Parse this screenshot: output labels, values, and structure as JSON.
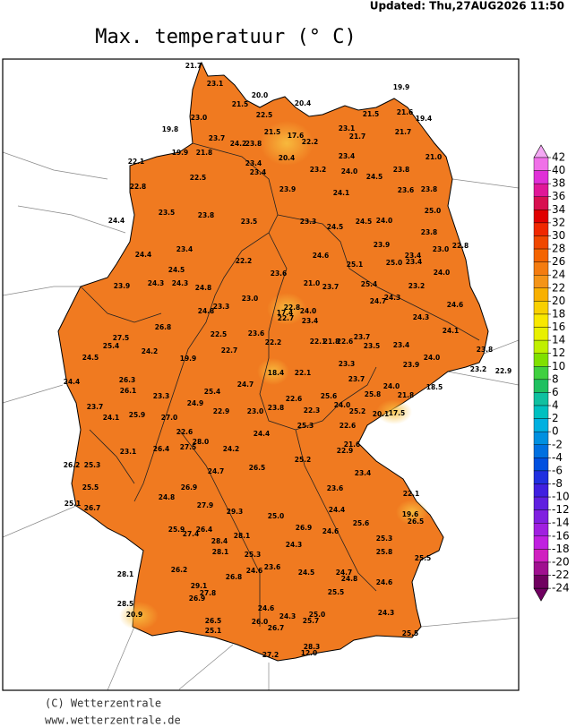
{
  "header": {
    "updated": "Updated: Thu,27AUG2026 11:50",
    "title": "Max. temperatuur (° C)"
  },
  "colorbar": {
    "ticks": [
      42,
      40,
      38,
      36,
      34,
      32,
      30,
      28,
      26,
      24,
      22,
      20,
      18,
      16,
      14,
      12,
      10,
      8,
      6,
      4,
      2,
      0,
      -2,
      -4,
      -6,
      -8,
      -10,
      -12,
      -14,
      -16,
      -18,
      -20,
      -22,
      -24
    ],
    "colors": [
      "#f4a8f4",
      "#f070e8",
      "#e030d8",
      "#e01898",
      "#d81050",
      "#e00000",
      "#f02800",
      "#f04800",
      "#f46400",
      "#f47c10",
      "#f49418",
      "#f8b000",
      "#f8d000",
      "#f8e800",
      "#e8f000",
      "#c0f000",
      "#80e000",
      "#40d040",
      "#20c060",
      "#10c0a0",
      "#00c0c0",
      "#00b0e0",
      "#0090e0",
      "#0070e0",
      "#0050e0",
      "#2030e0",
      "#4020e0",
      "#6020e0",
      "#8020e0",
      "#a020e0",
      "#c020e0",
      "#d020c0",
      "#a01090",
      "#700060"
    ]
  },
  "stations": [
    "21.7",
    "23.1",
    "20.0",
    "21.5",
    "20.4",
    "19.9",
    "22.5",
    "23.0",
    "21.5",
    "21.6",
    "19.4",
    "19.8",
    "23.1",
    "21.5",
    "17.6",
    "21.7",
    "21.7",
    "23.7",
    "24.2",
    "23.8",
    "22.2",
    "19.9",
    "21.8",
    "21.0",
    "23.4",
    "20.4",
    "23.4",
    "23.4",
    "22.1",
    "23.2",
    "24.0",
    "23.8",
    "22.5",
    "24.5",
    "22.8",
    "23.9",
    "24.1",
    "23.6",
    "23.8",
    "23.5",
    "23.8",
    "23.5",
    "23.3",
    "24.5",
    "24.5",
    "24.0",
    "25.0",
    "24.4",
    "23.8",
    "23.9",
    "23.0",
    "22.8",
    "23.4",
    "24.4",
    "22.2",
    "24.6",
    "25.1",
    "25.0",
    "23.4",
    "23.4",
    "23.2",
    "24.0",
    "24.5",
    "24.3",
    "24.3",
    "23.6",
    "23.9",
    "24.8",
    "21.0",
    "23.7",
    "25.4",
    "24.3",
    "24.7",
    "23.0",
    "23.3",
    "24.8",
    "22.8",
    "17.4",
    "24.0",
    "22.7",
    "23.4",
    "24.6",
    "24.3",
    "26.8",
    "23.6",
    "22.5",
    "22.2",
    "22.1",
    "21.8",
    "22.6",
    "23.7",
    "24.1",
    "27.5",
    "25.4",
    "22.7",
    "23.5",
    "23.4",
    "23.8",
    "24.5",
    "24.2",
    "19.9",
    "24.0",
    "23.9",
    "23.3",
    "23.2",
    "22.9",
    "18.4",
    "22.1",
    "23.7",
    "24.4",
    "26.3",
    "24.7",
    "24.0",
    "18.5",
    "26.1",
    "25.4",
    "22.6",
    "25.6",
    "25.8",
    "21.8",
    "23.3",
    "24.9",
    "24.0",
    "25.2",
    "20.1",
    "17.5",
    "23.7",
    "23.8",
    "22.3",
    "23.0",
    "22.9",
    "24.1",
    "25.9",
    "27.0",
    "25.3",
    "22.6",
    "22.6",
    "24.4",
    "28.0",
    "21.6",
    "27.5",
    "26.4",
    "24.2",
    "22.9",
    "23.1",
    "25.2",
    "26.2",
    "25.3",
    "26.5",
    "24.7",
    "23.4",
    "26.9",
    "23.6",
    "25.5",
    "24.8",
    "22.1",
    "25.1",
    "26.7",
    "27.9",
    "29.3",
    "24.4",
    "25.0",
    "19.6",
    "26.5",
    "25.6",
    "26.9",
    "24.6",
    "25.9",
    "27.4",
    "26.4",
    "28.1",
    "28.4",
    "25.3",
    "24.3",
    "28.1",
    "25.3",
    "25.8",
    "25.5",
    "26.2",
    "28.1",
    "24.6",
    "23.6",
    "26.8",
    "24.5",
    "24.7",
    "24.8",
    "24.6",
    "29.1",
    "27.8",
    "26.9",
    "25.5",
    "28.5",
    "24.6",
    "20.9",
    "24.3",
    "25.0",
    "25.7",
    "24.3",
    "26.5",
    "26.0",
    "26.7",
    "25.1",
    "25.5",
    "28.3",
    "12.0",
    "27.2"
  ],
  "footer": {
    "copyright": "(C) Wetterzentrale",
    "url": "www.wetterzentrale.de"
  }
}
